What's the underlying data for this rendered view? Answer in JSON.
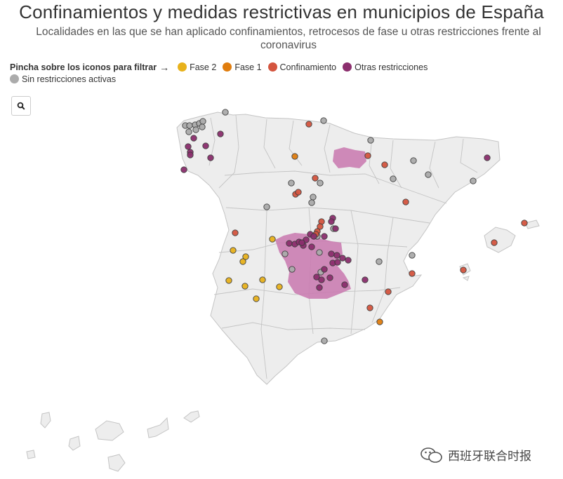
{
  "header": {
    "title": "Confinamientos y medidas restrictivas en municipios de España",
    "subtitle": "Localidades en las que se han aplicado confinamientos, retrocesos de fase u otras restricciones frente al coronavirus"
  },
  "legend": {
    "lead": "Pincha sobre los iconos para filtrar",
    "arrow": "→",
    "items": [
      {
        "label": "Fase 2",
        "color": "#e8b21c"
      },
      {
        "label": "Fase 1",
        "color": "#e07d0e"
      },
      {
        "label": "Confinamiento",
        "color": "#d4553f"
      },
      {
        "label": "Otras restricciones",
        "color": "#8c2f6e"
      },
      {
        "label": "Sin restricciones activas",
        "color": "#ababab"
      }
    ]
  },
  "colors": {
    "fase2": "#e8b21c",
    "fase1": "#e07d0e",
    "confinamiento": "#d4553f",
    "otras": "#8c2f6e",
    "sin": "#ababab",
    "land": "#ededed",
    "border": "#c4c4c4",
    "region": "#c97bb0"
  },
  "controls": {
    "search_icon": "search-icon"
  },
  "watermark": {
    "text": "西班牙联合时报",
    "icon": "wechat-icon"
  }
}
